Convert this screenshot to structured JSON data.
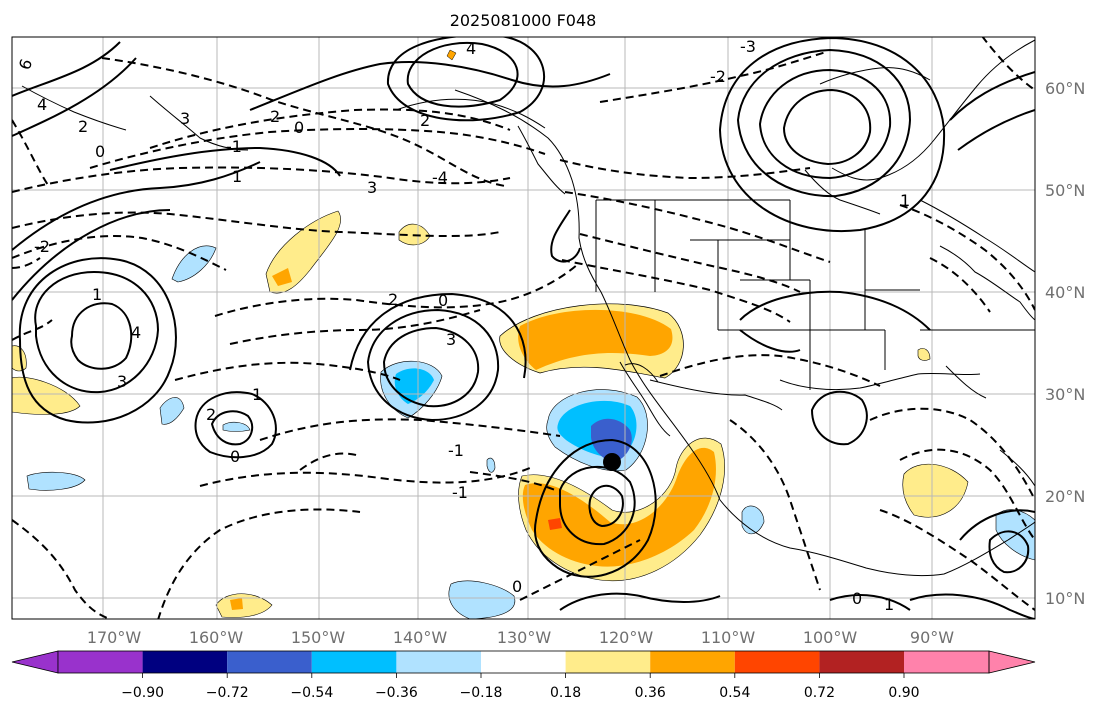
{
  "title": "2025081000 F048",
  "lon_labels": [
    "170°W",
    "160°W",
    "150°W",
    "140°W",
    "130°W",
    "120°W",
    "110°W",
    "100°W",
    "90°W"
  ],
  "lat_labels": [
    "60°N",
    "50°N",
    "40°N",
    "30°N",
    "20°N",
    "10°N"
  ],
  "colorbar": {
    "tick_labels": [
      "−0.90",
      "−0.72",
      "−0.54",
      "−0.36",
      "−0.18",
      "0.18",
      "0.36",
      "0.54",
      "0.72",
      "0.90"
    ],
    "colors": [
      "#9932cc",
      "#000080",
      "#3a5fcd",
      "#00bfff",
      "#b0e2ff",
      "#ffffff",
      "#ffec8b",
      "#ffa500",
      "#ff4500",
      "#b22222",
      "#ff82ab"
    ]
  },
  "contour_labels": [
    {
      "text": "6"
    },
    {
      "text": "4"
    },
    {
      "text": "2"
    },
    {
      "text": "0"
    },
    {
      "text": "3"
    },
    {
      "text": "1"
    },
    {
      "text": "4"
    },
    {
      "text": "3"
    },
    {
      "text": "2"
    },
    {
      "text": "0"
    },
    {
      "text": "-1"
    },
    {
      "text": "-2"
    },
    {
      "text": "4"
    },
    {
      "text": "3"
    },
    {
      "text": "1"
    },
    {
      "text": "2"
    },
    {
      "text": "3"
    },
    {
      "text": "2"
    },
    {
      "text": "0"
    },
    {
      "text": "-4"
    },
    {
      "text": "-3"
    },
    {
      "text": "-2"
    },
    {
      "text": "-1"
    },
    {
      "text": "-1"
    },
    {
      "text": "2"
    },
    {
      "text": "1"
    },
    {
      "text": "0"
    },
    {
      "text": "0"
    },
    {
      "text": "1"
    },
    {
      "text": "0"
    },
    {
      "text": "1"
    }
  ],
  "marker": {
    "label": "storm-center"
  }
}
